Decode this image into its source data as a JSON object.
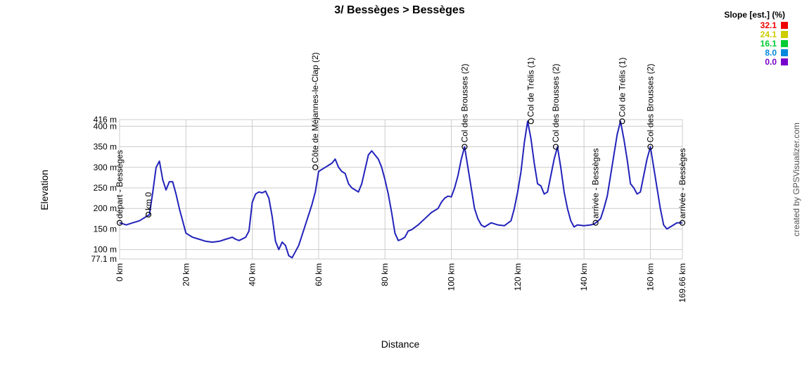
{
  "chart_data": {
    "type": "line",
    "title": "3/ Bessèges > Bessèges",
    "xlabel": "Distance",
    "ylabel": "Elevation",
    "xlim": [
      0,
      169.66
    ],
    "ylim": [
      77.1,
      416
    ],
    "x_ticks": [
      {
        "value": 0,
        "label": "0 km"
      },
      {
        "value": 20,
        "label": "20 km"
      },
      {
        "value": 40,
        "label": "40 km"
      },
      {
        "value": 60,
        "label": "60 km"
      },
      {
        "value": 80,
        "label": "80 km"
      },
      {
        "value": 100,
        "label": "100 km"
      },
      {
        "value": 120,
        "label": "120 km"
      },
      {
        "value": 140,
        "label": "140 km"
      },
      {
        "value": 160,
        "label": "160 km"
      },
      {
        "value": 169.66,
        "label": "169.66 km"
      }
    ],
    "y_ticks": [
      {
        "value": 77.1,
        "label": "77.1 m"
      },
      {
        "value": 100,
        "label": "100 m"
      },
      {
        "value": 150,
        "label": "150 m"
      },
      {
        "value": 200,
        "label": "200 m"
      },
      {
        "value": 250,
        "label": "250 m"
      },
      {
        "value": 300,
        "label": "300 m"
      },
      {
        "value": 350,
        "label": "350 m"
      },
      {
        "value": 400,
        "label": "400 m"
      },
      {
        "value": 416,
        "label": "416 m"
      }
    ],
    "grid": true,
    "series": [
      {
        "x": [
          0,
          2,
          4,
          6,
          7,
          8,
          9,
          10,
          11,
          12,
          13,
          14,
          15,
          16,
          17,
          18,
          19,
          20,
          22,
          24,
          26,
          28,
          30,
          32,
          34,
          35,
          36,
          38,
          39,
          40,
          41,
          42,
          43,
          44,
          45,
          46,
          47,
          48,
          49,
          50,
          51,
          52,
          54,
          56,
          58,
          59,
          60,
          62,
          63,
          64,
          65,
          66,
          67,
          68,
          69,
          70,
          71,
          72,
          73,
          74,
          75,
          76,
          77,
          78,
          79,
          80,
          81,
          82,
          83,
          84,
          85,
          86,
          87,
          88,
          90,
          92,
          94,
          96,
          97,
          98,
          99,
          100,
          101,
          102,
          103,
          104,
          105,
          106,
          107,
          108,
          109,
          110,
          112,
          114,
          116,
          118,
          119,
          120,
          121,
          122,
          123,
          124,
          125,
          126,
          127,
          128,
          129,
          130,
          131,
          132,
          133,
          134,
          135,
          136,
          137,
          138,
          140,
          142,
          143,
          144,
          145,
          146,
          147,
          148,
          149,
          150,
          151,
          152,
          153,
          154,
          155,
          156,
          157,
          158,
          159,
          160,
          161,
          162,
          163,
          164,
          165,
          166,
          167,
          168,
          169.66
        ],
        "y": [
          165,
          160,
          165,
          170,
          175,
          180,
          185,
          240,
          300,
          315,
          270,
          245,
          265,
          265,
          235,
          200,
          170,
          140,
          130,
          125,
          120,
          118,
          120,
          125,
          130,
          125,
          122,
          130,
          145,
          215,
          235,
          240,
          238,
          242,
          225,
          180,
          120,
          100,
          118,
          110,
          85,
          80,
          110,
          160,
          210,
          240,
          290,
          300,
          305,
          310,
          320,
          300,
          290,
          285,
          260,
          250,
          245,
          240,
          260,
          295,
          330,
          340,
          330,
          320,
          300,
          270,
          235,
          190,
          140,
          122,
          125,
          130,
          145,
          148,
          160,
          175,
          190,
          200,
          215,
          225,
          230,
          228,
          250,
          280,
          320,
          350,
          300,
          250,
          200,
          175,
          160,
          155,
          165,
          160,
          158,
          170,
          200,
          240,
          290,
          360,
          412,
          370,
          310,
          260,
          255,
          235,
          240,
          280,
          320,
          350,
          300,
          240,
          200,
          170,
          155,
          160,
          158,
          160,
          162,
          168,
          175,
          200,
          230,
          280,
          330,
          380,
          412,
          370,
          320,
          260,
          250,
          235,
          240,
          280,
          320,
          350,
          300,
          250,
          200,
          160,
          150,
          155,
          160,
          165,
          165
        ],
        "color": "#2222bb"
      }
    ],
    "annotations": [
      {
        "x": 0,
        "y": 165,
        "label": "départ - Bessèges"
      },
      {
        "x": 8.7,
        "y": 185,
        "label": "km 0"
      },
      {
        "x": 59,
        "y": 300,
        "label": "Côte de Méjannes-le-Clap (2)"
      },
      {
        "x": 104,
        "y": 350,
        "label": "Col des Brousses (2)"
      },
      {
        "x": 124,
        "y": 412,
        "label": "Col de Trélis (1)"
      },
      {
        "x": 131.5,
        "y": 350,
        "label": "Col des Brousses (2)"
      },
      {
        "x": 143.5,
        "y": 165,
        "label": "arrivée - Bessèges"
      },
      {
        "x": 151.5,
        "y": 412,
        "label": "Col de Trélis (1)"
      },
      {
        "x": 160,
        "y": 350,
        "label": "Col des Brousses (2)"
      },
      {
        "x": 169.66,
        "y": 165,
        "label": "arrivée - Bessèges"
      }
    ],
    "legend": {
      "title": "Slope [est.] (%)",
      "placement": "top-right",
      "items": [
        {
          "value": "32.1",
          "color": "#ee0000"
        },
        {
          "value": "24.1",
          "color": "#cccc00"
        },
        {
          "value": "16.1",
          "color": "#00cc33"
        },
        {
          "value": "8.0",
          "color": "#0088dd"
        },
        {
          "value": "0.0",
          "color": "#7700cc"
        }
      ]
    }
  },
  "credit": "created by GPSVisualizer.com"
}
